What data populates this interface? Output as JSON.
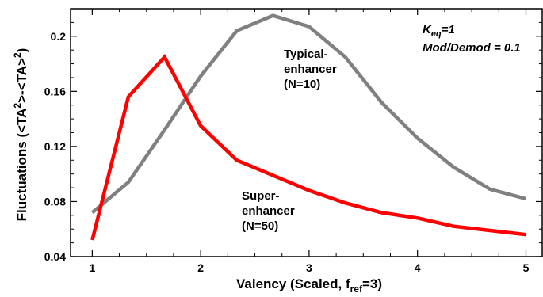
{
  "chart_data": {
    "type": "line",
    "xlabel_main": "Valency (Scaled, f",
    "xlabel_sub": "ref",
    "xlabel_tail": "=3)",
    "ylabel_prefix": "Fluctuations (<TA",
    "ylabel_sup1": "2",
    "ylabel_mid": ">-<TA>",
    "ylabel_sup2": "2",
    "ylabel_suffix": ")",
    "xlim": [
      0.8,
      5.15
    ],
    "ylim": [
      0.04,
      0.22
    ],
    "xticks": [
      1,
      2,
      3,
      4,
      5
    ],
    "yticks": [
      0.04,
      0.08,
      0.12,
      0.16,
      0.2
    ],
    "ytick_labels": [
      "0.04",
      "0.08",
      "0.12",
      "0.16",
      "0.2"
    ],
    "grid": false,
    "series": [
      {
        "name": "Typical-enhancer (N=10)",
        "color": "#808080",
        "x": [
          1,
          1.333,
          1.667,
          2,
          2.333,
          2.667,
          3,
          3.333,
          3.667,
          4,
          4.333,
          4.667,
          5
        ],
        "y": [
          0.072,
          0.094,
          0.132,
          0.171,
          0.204,
          0.215,
          0.207,
          0.185,
          0.152,
          0.126,
          0.105,
          0.089,
          0.082
        ]
      },
      {
        "name": "Super-enhancer (N=50)",
        "color": "#ff0000",
        "x": [
          1,
          1.333,
          1.667,
          2,
          2.333,
          2.667,
          3,
          3.333,
          3.667,
          4,
          4.333,
          4.667,
          5
        ],
        "y": [
          0.052,
          0.156,
          0.185,
          0.135,
          0.11,
          0.099,
          0.088,
          0.079,
          0.072,
          0.068,
          0.062,
          0.059,
          0.056
        ]
      }
    ],
    "annotations": {
      "typical_line1": "Typical-",
      "typical_line2": "enhancer",
      "typical_line3": "(N=10)",
      "super_line1": "Super-",
      "super_line2": "enhancer",
      "super_line3": "(N=50)",
      "keq_main": "K",
      "keq_sub": "eq",
      "keq_tail": "=1",
      "mod_demod": "Mod/Demod = 0.1"
    }
  }
}
